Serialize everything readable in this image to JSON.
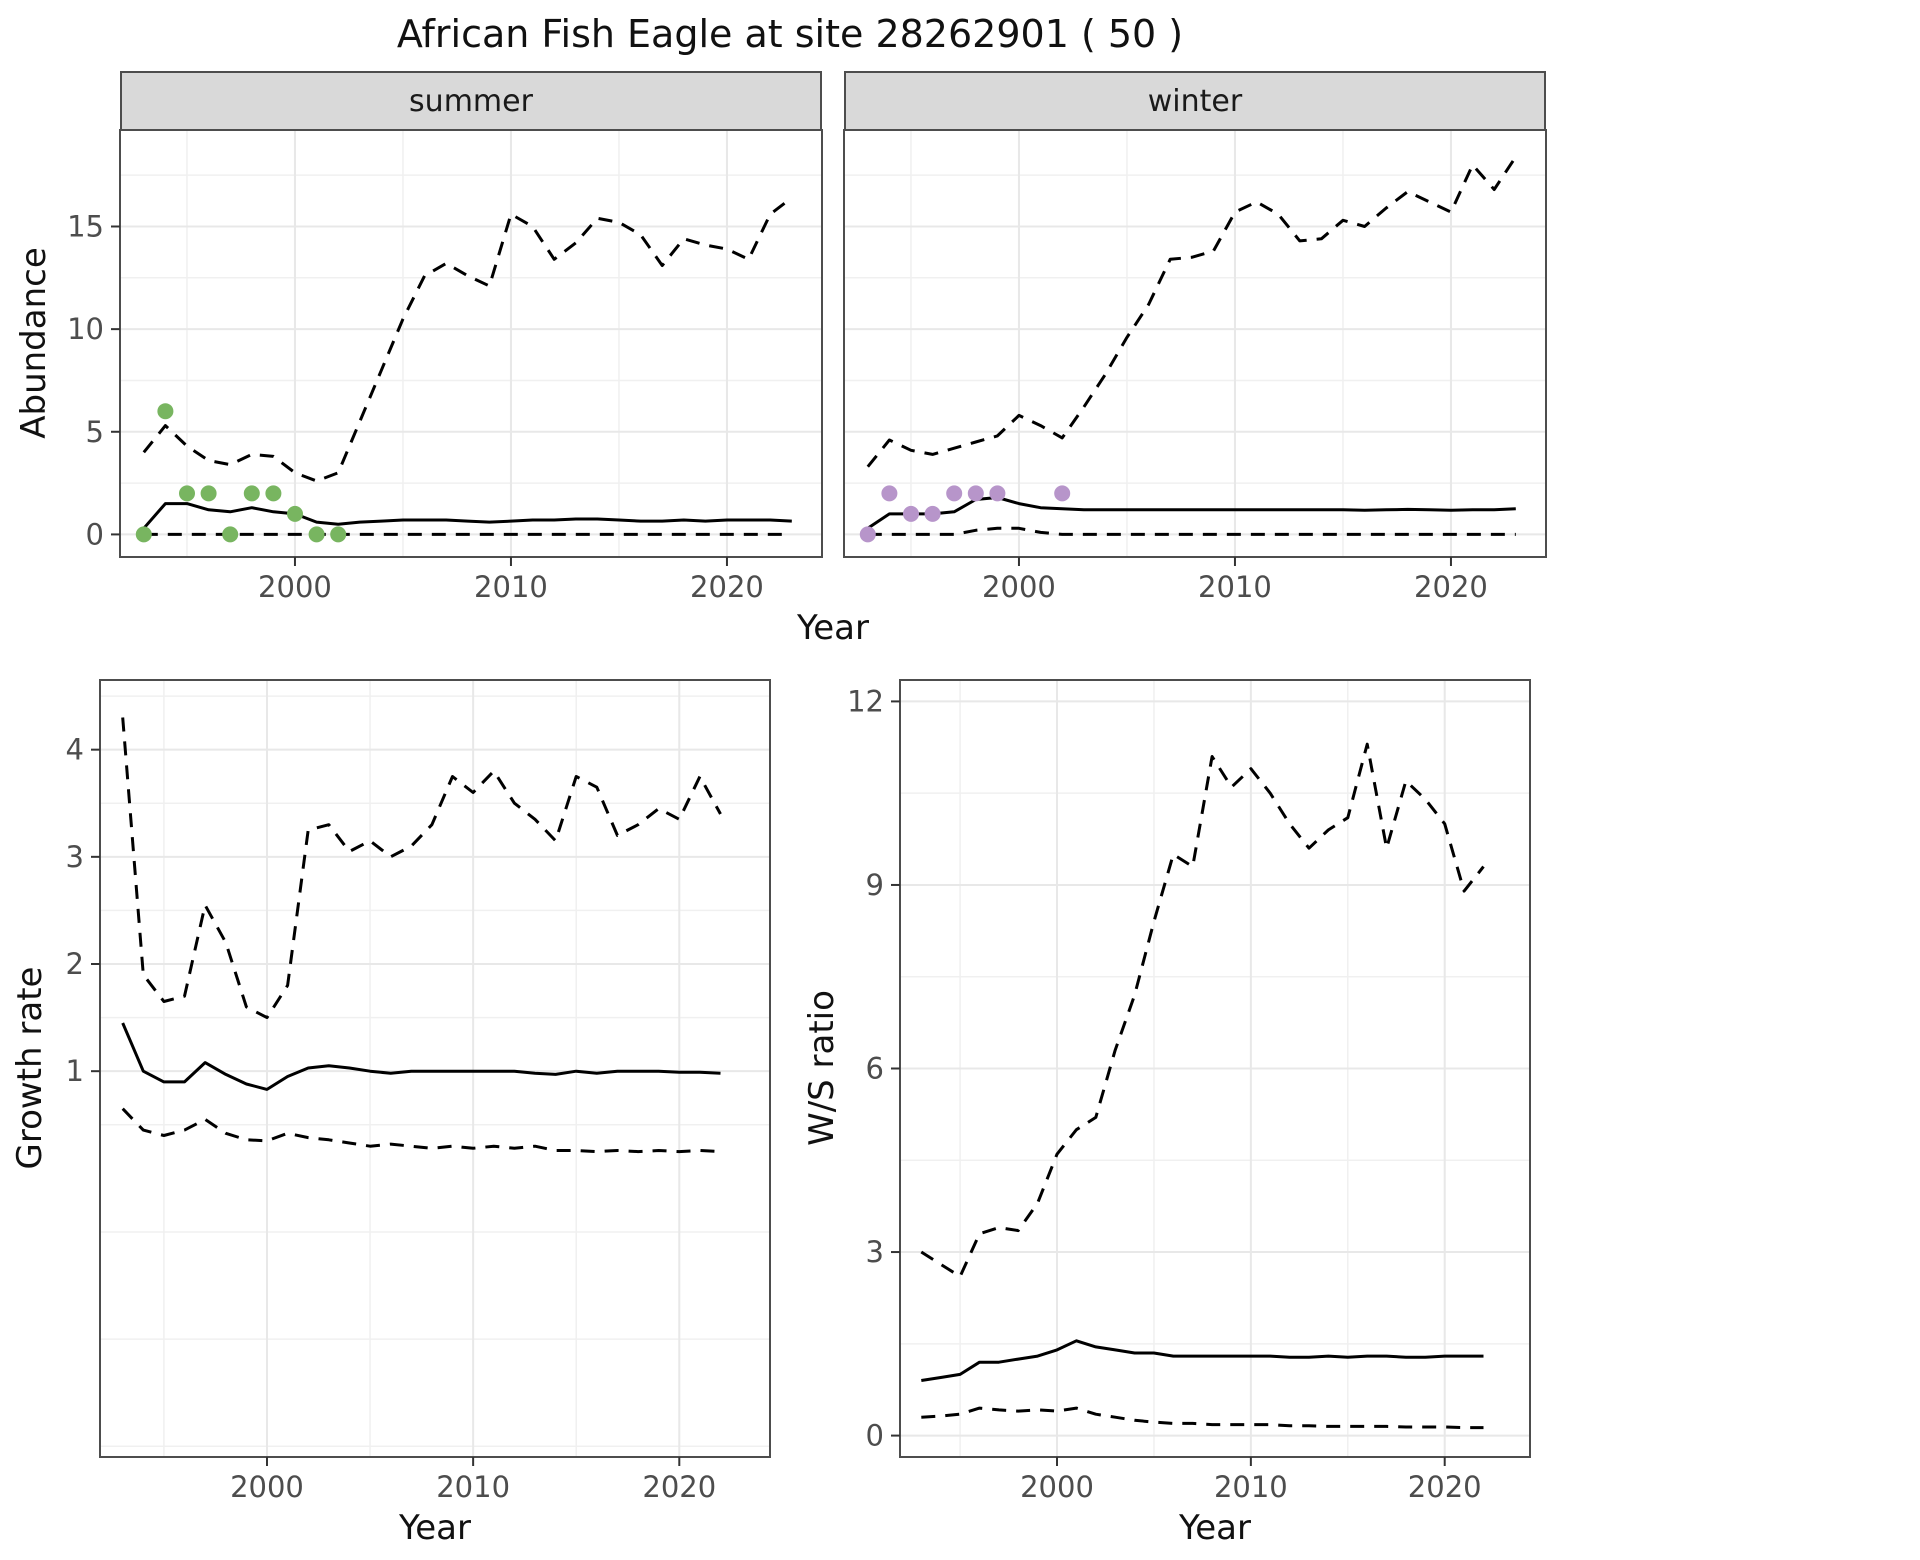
{
  "labels": {
    "title": "African Fish Eagle at site 28262901 ( 50 )",
    "abundance": "Abundance",
    "growth_rate": "Growth rate",
    "ws_ratio": "W/S ratio",
    "year": "Year"
  },
  "colors": {
    "line": "#000000",
    "summer_points": "#78b560",
    "winter_points": "#b795ca",
    "grid_major": "#e8e8e8",
    "grid_minor": "#f0f0f0",
    "panel_border": "#4d4d4d",
    "strip_background": "#d9d9d9",
    "tick_text": "#4d4d4d"
  },
  "chart_data": [
    {
      "id": "abundance-summer",
      "type": "line",
      "facet_label": "summer",
      "xlabel": "Year",
      "ylabel": "Abundance",
      "xlim": [
        1991.9,
        2024.4
      ],
      "ylim": [
        -1.1,
        19.7
      ],
      "xticks": [
        2000,
        2010,
        2020
      ],
      "yticks": [
        0,
        5,
        10,
        15
      ],
      "x": [
        1993,
        1994,
        1995,
        1996,
        1997,
        1998,
        1999,
        2000,
        2001,
        2002,
        2003,
        2004,
        2005,
        2006,
        2007,
        2008,
        2009,
        2010,
        2011,
        2012,
        2013,
        2014,
        2015,
        2016,
        2017,
        2018,
        2019,
        2020,
        2021,
        2022,
        2023
      ],
      "series": [
        {
          "name": "upper-95ci",
          "style": "dashed",
          "values": [
            4.0,
            5.3,
            4.3,
            3.6,
            3.4,
            3.9,
            3.8,
            3.0,
            2.6,
            3.0,
            5.5,
            8.0,
            10.5,
            12.6,
            13.2,
            12.6,
            12.1,
            15.6,
            15.0,
            13.4,
            14.2,
            15.4,
            15.2,
            14.6,
            13.1,
            14.4,
            14.1,
            13.9,
            13.4,
            15.6,
            16.4
          ]
        },
        {
          "name": "median",
          "style": "solid",
          "values": [
            0.3,
            1.5,
            1.5,
            1.2,
            1.1,
            1.3,
            1.1,
            1.0,
            0.6,
            0.5,
            0.6,
            0.65,
            0.7,
            0.7,
            0.7,
            0.65,
            0.6,
            0.65,
            0.7,
            0.7,
            0.75,
            0.75,
            0.7,
            0.65,
            0.65,
            0.7,
            0.65,
            0.7,
            0.7,
            0.7,
            0.65
          ]
        },
        {
          "name": "lower-95ci",
          "style": "dashed",
          "values": [
            0,
            0,
            0,
            0,
            0,
            0,
            0,
            0,
            0,
            0,
            0,
            0,
            0,
            0,
            0,
            0,
            0,
            0,
            0,
            0,
            0,
            0,
            0,
            0,
            0,
            0,
            0,
            0,
            0,
            0,
            0
          ]
        }
      ],
      "points": {
        "name": "observed-counts-summer",
        "color": "#78b560",
        "x": [
          1993,
          1994,
          1995,
          1996,
          1997,
          1998,
          1999,
          2000,
          2001,
          2002
        ],
        "values": [
          0,
          6,
          2,
          2,
          0,
          2,
          2,
          1,
          0,
          0
        ]
      }
    },
    {
      "id": "abundance-winter",
      "type": "line",
      "facet_label": "winter",
      "xlabel": "Year",
      "ylabel": "Abundance",
      "xlim": [
        1991.9,
        2024.4
      ],
      "ylim": [
        -1.1,
        19.7
      ],
      "xticks": [
        2000,
        2010,
        2020
      ],
      "yticks": [
        0,
        5,
        10,
        15
      ],
      "x": [
        1993,
        1994,
        1995,
        1996,
        1997,
        1998,
        1999,
        2000,
        2001,
        2002,
        2003,
        2004,
        2005,
        2006,
        2007,
        2008,
        2009,
        2010,
        2011,
        2012,
        2013,
        2014,
        2015,
        2016,
        2017,
        2018,
        2019,
        2020,
        2021,
        2022,
        2023
      ],
      "series": [
        {
          "name": "upper-95ci",
          "style": "dashed",
          "values": [
            3.3,
            4.6,
            4.1,
            3.9,
            4.2,
            4.5,
            4.8,
            5.8,
            5.3,
            4.7,
            6.2,
            7.8,
            9.6,
            11.2,
            13.4,
            13.5,
            13.8,
            15.7,
            16.2,
            15.6,
            14.3,
            14.4,
            15.3,
            15.0,
            15.9,
            16.7,
            16.2,
            15.7,
            18.0,
            16.8,
            18.4
          ]
        },
        {
          "name": "median",
          "style": "solid",
          "values": [
            0.3,
            1.0,
            1.0,
            1.0,
            1.1,
            1.7,
            1.8,
            1.5,
            1.3,
            1.25,
            1.2,
            1.2,
            1.2,
            1.2,
            1.2,
            1.2,
            1.2,
            1.2,
            1.2,
            1.2,
            1.2,
            1.2,
            1.2,
            1.18,
            1.2,
            1.22,
            1.2,
            1.18,
            1.2,
            1.2,
            1.25
          ]
        },
        {
          "name": "lower-95ci",
          "style": "dashed",
          "values": [
            0,
            0,
            0,
            0,
            0,
            0.2,
            0.3,
            0.3,
            0.1,
            0,
            0,
            0,
            0,
            0,
            0,
            0,
            0,
            0,
            0,
            0,
            0,
            0,
            0,
            0,
            0,
            0,
            0,
            0,
            0,
            0,
            0
          ]
        }
      ],
      "points": {
        "name": "observed-counts-winter",
        "color": "#b795ca",
        "x": [
          1993,
          1994,
          1995,
          1996,
          1997,
          1998,
          1999,
          2002
        ],
        "values": [
          0,
          2,
          1,
          1,
          2,
          2,
          2,
          2
        ]
      }
    },
    {
      "id": "growth-rate",
      "type": "line",
      "facet_label": "",
      "xlabel": "Year",
      "ylabel": "Growth rate",
      "xlim": [
        1991.9,
        2024.4
      ],
      "ylim": [
        -2.6,
        4.65
      ],
      "xticks": [
        2000,
        2010,
        2020
      ],
      "yticks": [
        1,
        2,
        3,
        4
      ],
      "x": [
        1993,
        1994,
        1995,
        1996,
        1997,
        1998,
        1999,
        2000,
        2001,
        2002,
        2003,
        2004,
        2005,
        2006,
        2007,
        2008,
        2009,
        2010,
        2011,
        2012,
        2013,
        2014,
        2015,
        2016,
        2017,
        2018,
        2019,
        2020,
        2021,
        2022
      ],
      "series": [
        {
          "name": "upper-95ci",
          "style": "dashed",
          "values": [
            4.3,
            1.9,
            1.65,
            1.7,
            2.55,
            2.2,
            1.6,
            1.5,
            1.8,
            3.25,
            3.3,
            3.05,
            3.15,
            3.0,
            3.1,
            3.3,
            3.75,
            3.6,
            3.8,
            3.5,
            3.35,
            3.15,
            3.75,
            3.65,
            3.2,
            3.3,
            3.45,
            3.35,
            3.75,
            3.4
          ]
        },
        {
          "name": "median",
          "style": "solid",
          "values": [
            1.45,
            1.0,
            0.9,
            0.9,
            1.08,
            0.97,
            0.88,
            0.83,
            0.95,
            1.03,
            1.05,
            1.03,
            1.0,
            0.98,
            1.0,
            1.0,
            1.0,
            1.0,
            1.0,
            1.0,
            0.98,
            0.97,
            1.0,
            0.98,
            1.0,
            1.0,
            1.0,
            0.99,
            0.99,
            0.98
          ]
        },
        {
          "name": "lower-95ci",
          "style": "dashed",
          "values": [
            0.65,
            0.45,
            0.4,
            0.45,
            0.55,
            0.42,
            0.36,
            0.35,
            0.42,
            0.38,
            0.36,
            0.33,
            0.3,
            0.32,
            0.3,
            0.28,
            0.3,
            0.28,
            0.3,
            0.28,
            0.3,
            0.26,
            0.26,
            0.25,
            0.26,
            0.25,
            0.26,
            0.25,
            0.26,
            0.25
          ]
        }
      ],
      "points": null
    },
    {
      "id": "ws-ratio",
      "type": "line",
      "facet_label": "",
      "xlabel": "Year",
      "ylabel": "W/S ratio",
      "xlim": [
        1991.9,
        2024.4
      ],
      "ylim": [
        -0.35,
        12.35
      ],
      "xticks": [
        2000,
        2010,
        2020
      ],
      "yticks": [
        0,
        3,
        6,
        9,
        12
      ],
      "x": [
        1993,
        1994,
        1995,
        1996,
        1997,
        1998,
        1999,
        2000,
        2001,
        2002,
        2003,
        2004,
        2005,
        2006,
        2007,
        2008,
        2009,
        2010,
        2011,
        2012,
        2013,
        2014,
        2015,
        2016,
        2017,
        2018,
        2019,
        2020,
        2021,
        2022
      ],
      "series": [
        {
          "name": "upper-95ci",
          "style": "dashed",
          "values": [
            3.0,
            2.8,
            2.6,
            3.3,
            3.4,
            3.35,
            3.8,
            4.6,
            5.0,
            5.2,
            6.3,
            7.2,
            8.4,
            9.5,
            9.3,
            11.1,
            10.6,
            10.9,
            10.5,
            10.0,
            9.6,
            9.9,
            10.1,
            11.3,
            9.6,
            10.7,
            10.4,
            10.0,
            8.9,
            9.3
          ]
        },
        {
          "name": "median",
          "style": "solid",
          "values": [
            0.9,
            0.95,
            1.0,
            1.2,
            1.2,
            1.25,
            1.3,
            1.4,
            1.55,
            1.45,
            1.4,
            1.35,
            1.35,
            1.3,
            1.3,
            1.3,
            1.3,
            1.3,
            1.3,
            1.28,
            1.28,
            1.3,
            1.28,
            1.3,
            1.3,
            1.28,
            1.28,
            1.3,
            1.3,
            1.3
          ]
        },
        {
          "name": "lower-95ci",
          "style": "dashed",
          "values": [
            0.3,
            0.32,
            0.35,
            0.45,
            0.42,
            0.4,
            0.42,
            0.4,
            0.45,
            0.35,
            0.3,
            0.25,
            0.22,
            0.2,
            0.2,
            0.18,
            0.18,
            0.18,
            0.18,
            0.16,
            0.16,
            0.15,
            0.15,
            0.15,
            0.15,
            0.14,
            0.14,
            0.14,
            0.13,
            0.13
          ]
        }
      ],
      "points": null
    }
  ]
}
